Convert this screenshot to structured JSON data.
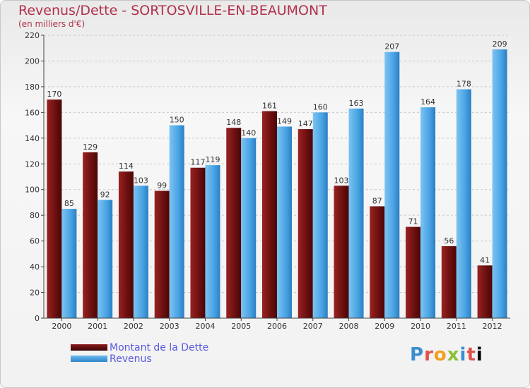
{
  "title": "Revenus/Dette - SORTOSVILLE-EN-BEAUMONT",
  "subtitle": "(en milliers d'€)",
  "legend": {
    "debt_label": "Montant de la Dette",
    "revenue_label": "Revenus"
  },
  "logo_text": "Proxiti",
  "chart_data": {
    "type": "bar",
    "title": "Revenus/Dette - SORTOSVILLE-EN-BEAUMONT",
    "ylabel": "(en milliers d'€)",
    "categories": [
      "2000",
      "2001",
      "2002",
      "2003",
      "2004",
      "2005",
      "2006",
      "2007",
      "2008",
      "2009",
      "2010",
      "2011",
      "2012"
    ],
    "series": [
      {
        "name": "Montant de la Dette",
        "color": "#7a1414",
        "values": [
          170,
          129,
          114,
          99,
          117,
          148,
          161,
          147,
          103,
          87,
          71,
          56,
          41
        ]
      },
      {
        "name": "Revenus",
        "color": "#4aa3e4",
        "values": [
          85,
          92,
          103,
          150,
          119,
          140,
          149,
          160,
          163,
          207,
          164,
          178,
          209
        ]
      }
    ],
    "ylim": [
      0,
      220
    ],
    "yticks": [
      0,
      20,
      40,
      60,
      80,
      100,
      120,
      140,
      160,
      180,
      200,
      220
    ],
    "grid": true,
    "legend_position": "bottom-left"
  }
}
